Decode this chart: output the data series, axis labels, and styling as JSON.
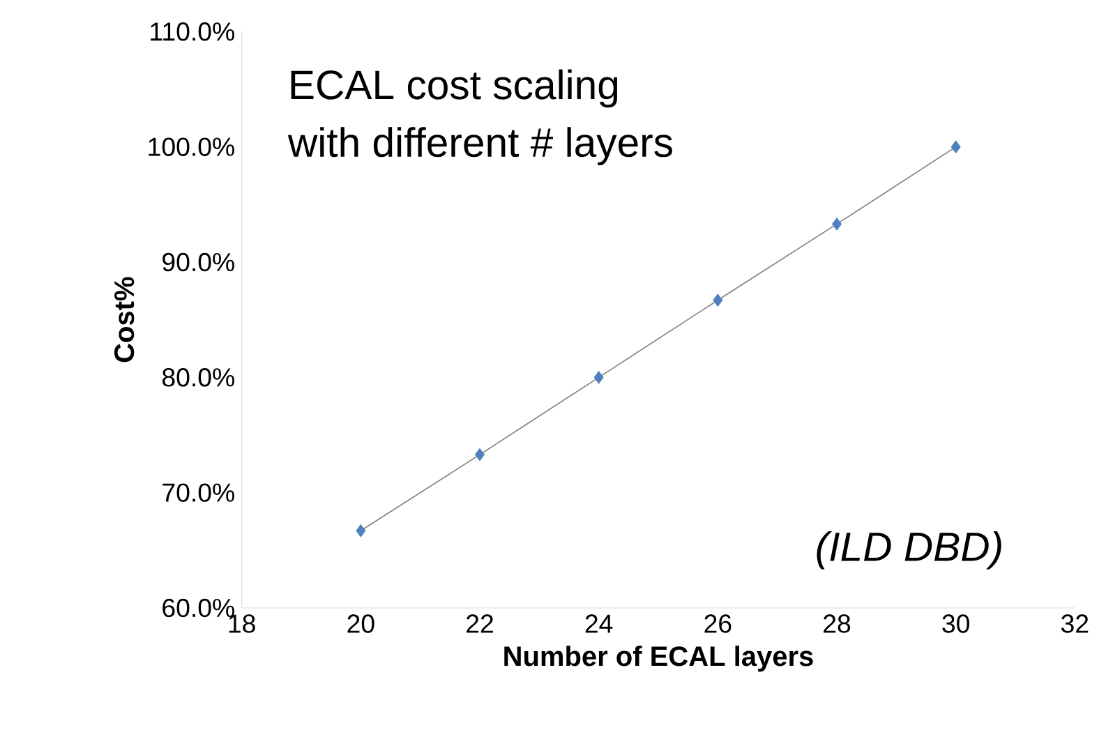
{
  "chart_data": {
    "type": "scatter",
    "xlabel": "Number of ECAL layers",
    "ylabel": "Cost%",
    "annotations": [
      "ECAL cost scaling",
      "with different # layers",
      "(ILD DBD)"
    ],
    "series": [
      {
        "color": "#4f7fbf",
        "marker": "diamond",
        "x": [
          20,
          22,
          24,
          26,
          28,
          30
        ],
        "values": [
          66.7,
          73.3,
          80.0,
          86.7,
          93.3,
          100.0
        ]
      },
      {
        "type": "line",
        "color": "#7f7f7f",
        "marker": "none",
        "x": [
          20,
          22,
          24,
          26,
          28,
          30
        ],
        "values": [
          66.7,
          73.3,
          80.0,
          86.7,
          93.3,
          100.0
        ]
      }
    ],
    "xlim": [
      18,
      32
    ],
    "xticks": [
      18,
      20,
      22,
      24,
      26,
      28,
      30,
      32
    ],
    "ylim": [
      60,
      110
    ],
    "yticks": [
      {
        "value": 60,
        "label": "60.0%"
      },
      {
        "value": 70,
        "label": "70.0%"
      },
      {
        "value": 80,
        "label": "80.0%"
      },
      {
        "value": 90,
        "label": "90.0%"
      },
      {
        "value": 100,
        "label": "100.0%"
      },
      {
        "value": 110,
        "label": "110.0%"
      }
    ],
    "grid": false
  }
}
